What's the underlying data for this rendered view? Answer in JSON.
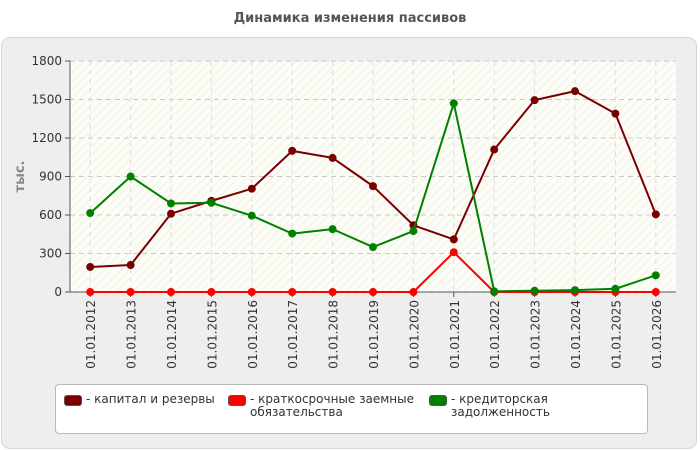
{
  "chart_data": {
    "type": "line",
    "title": "Динамика изменения пассивов",
    "ylabel": "тыс.",
    "xlabel": "",
    "ylim": [
      0,
      1800
    ],
    "yticks": [
      0,
      300,
      600,
      900,
      1200,
      1500,
      1800
    ],
    "grid": true,
    "legend_position": "bottom",
    "categories": [
      "01.01.2012",
      "01.01.2013",
      "01.01.2014",
      "01.01.2015",
      "01.01.2016",
      "01.01.2017",
      "01.01.2018",
      "01.01.2019",
      "01.01.2020",
      "01.01.2021",
      "01.01.2022",
      "01.01.2023",
      "01.01.2024",
      "01.01.2025",
      "01.01.2026"
    ],
    "series": [
      {
        "name": "- капитал и резервы",
        "color": "#7a0000",
        "values": [
          195,
          210,
          610,
          710,
          805,
          1100,
          1045,
          825,
          520,
          410,
          1110,
          1495,
          1565,
          1390,
          605
        ]
      },
      {
        "name": "- краткосрочные заемные\nобязательства",
        "color": "#ff0000",
        "values": [
          0,
          0,
          0,
          0,
          0,
          0,
          0,
          0,
          0,
          310,
          0,
          0,
          0,
          0,
          0
        ]
      },
      {
        "name": "- кредиторская задолженность",
        "color": "#008000",
        "values": [
          615,
          900,
          690,
          695,
          595,
          455,
          490,
          350,
          475,
          1470,
          5,
          10,
          15,
          25,
          130
        ]
      }
    ]
  }
}
